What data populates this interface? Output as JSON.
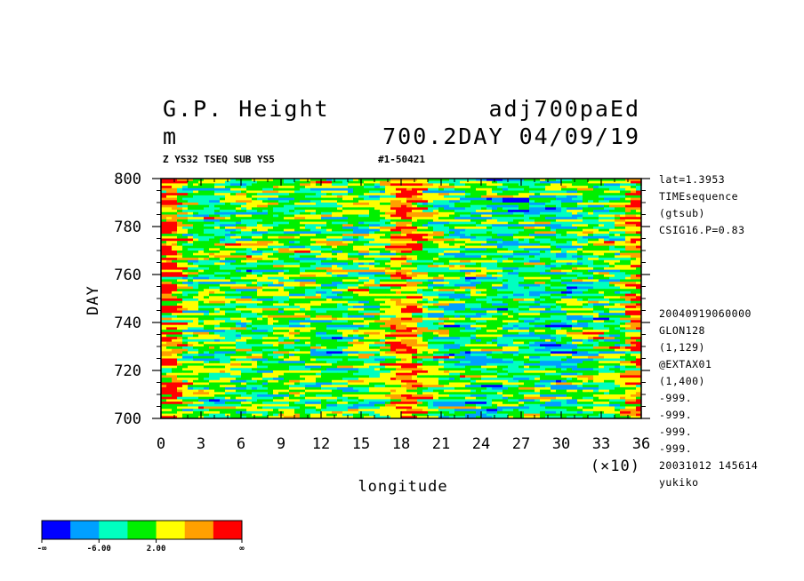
{
  "header": {
    "title_left": "G.P. Height",
    "title_right": "adj700paEd",
    "units": "m",
    "run_info": "700.2DAY 04/09/19",
    "subtitle": "Z YS32 TSEQ SUB YS5",
    "id_label": "#1-50421"
  },
  "side_info": {
    "top": [
      "lat=1.3953",
      "TIMEsequence",
      "(gtsub)",
      "CSIG16.P=0.83"
    ],
    "bottom": [
      "20040919060000",
      "GLON128",
      "(1,129)",
      "@EXTAX01",
      "(1,400)",
      "-999.",
      "-999.",
      "-999.",
      "-999.",
      "20031012 145614",
      "yukiko"
    ]
  },
  "colors": {
    "levels": [
      "#0000ff",
      "#00a0ff",
      "#00ffc0",
      "#00f000",
      "#ffff00",
      "#ffa000",
      "#ff0000"
    ]
  },
  "legend": {
    "labels": [
      "-∞",
      "-6.00",
      "2.00",
      "∞"
    ]
  },
  "chart_data": {
    "type": "heatmap",
    "title": "G.P. Height",
    "xlabel": "longitude",
    "ylabel": "DAY",
    "x_multiplier": "(×10)",
    "xlim": [
      0,
      36
    ],
    "ylim": [
      700,
      800
    ],
    "x_ticks": [
      "0",
      "3",
      "6",
      "9",
      "12",
      "15",
      "18",
      "21",
      "24",
      "27",
      "30",
      "33",
      "36"
    ],
    "y_ticks": [
      "700",
      "720",
      "740",
      "760",
      "780",
      "800"
    ],
    "color_breaks": [
      -6.0,
      2.0
    ],
    "features": [
      {
        "description": "positive anomaly band",
        "x_range": [
          17,
          19
        ],
        "y_range": [
          700,
          800
        ]
      },
      {
        "description": "positive anomaly band",
        "x_range": [
          0,
          1
        ],
        "y_range": [
          700,
          800
        ]
      },
      {
        "description": "positive anomaly band",
        "x_range": [
          35,
          36
        ],
        "y_range": [
          700,
          800
        ]
      }
    ]
  }
}
